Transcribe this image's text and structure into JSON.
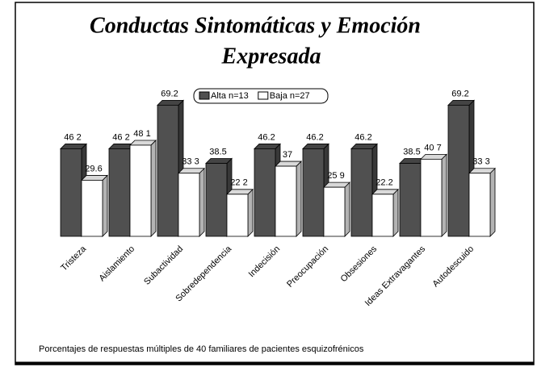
{
  "chart_data": {
    "type": "bar3d",
    "title": [
      "Conductas Sintomáticas y Emoción",
      "Expresada"
    ],
    "caption": "Porcentajes de respuestas múltiples de 40 familiares de pacientes esquizofrénicos",
    "categories": [
      "Tristeza",
      "Aislamiento",
      "Subactividad",
      "Sobredependencia",
      "Indecisión",
      "Preocupación",
      "Obsesiones",
      "Ideas Extravagantes",
      "Autodescuido"
    ],
    "series": [
      {
        "name": "Alta n=13",
        "color": "#505050",
        "values": [
          46.2,
          46.2,
          69.2,
          38.5,
          46.2,
          46.2,
          46.2,
          38.5,
          69.2
        ],
        "value_labels": [
          "46 2",
          "46 2",
          "69.2",
          "38.5",
          "46.2",
          "46.2",
          "46.2",
          "38.5",
          "69.2"
        ]
      },
      {
        "name": "Baja n=27",
        "color": "#ffffff",
        "values": [
          29.6,
          48.1,
          33.3,
          22.2,
          37,
          25.9,
          22.2,
          40.7,
          33.3
        ],
        "value_labels": [
          "29.6",
          "48 1",
          "33 3",
          "22 2",
          "37",
          "25 9",
          "22.2",
          "40 7",
          "33 3"
        ]
      }
    ],
    "ylim": [
      0,
      80
    ],
    "legend": "top"
  }
}
